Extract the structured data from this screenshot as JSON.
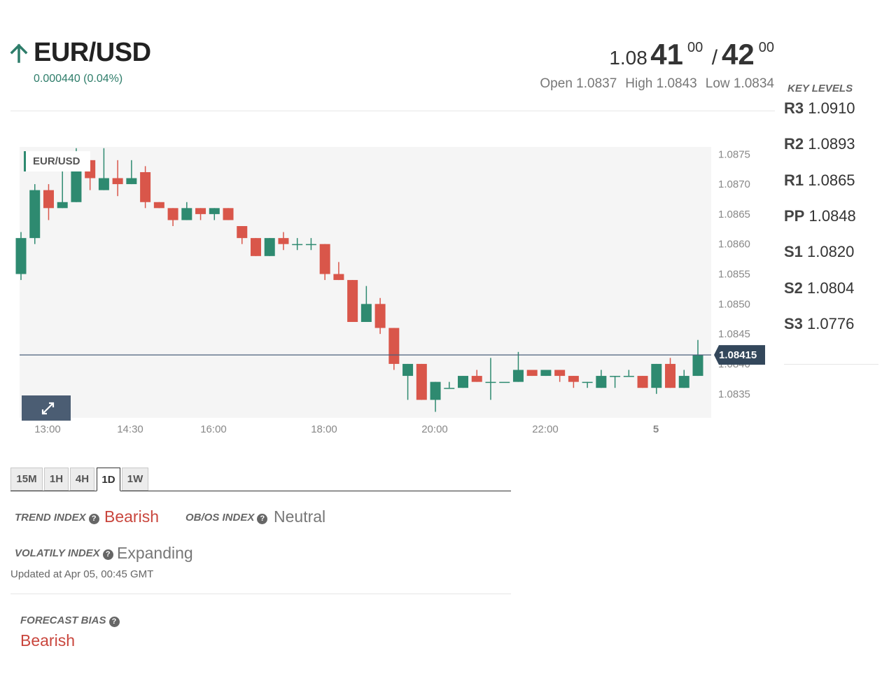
{
  "header": {
    "pair": "EUR/USD",
    "change": "0.000440 (0.04%)",
    "direction_icon": "up-arrow-icon",
    "bid_prefix": "1.08",
    "bid_big": "41",
    "bid_sup": "00",
    "separator": "/",
    "ask_big": "42",
    "ask_sup": "00",
    "open": "Open 1.0837",
    "high": "High 1.0843",
    "low": "Low 1.0834"
  },
  "key_levels": {
    "title": "KEY LEVELS",
    "items": [
      {
        "label": "R3",
        "value": "1.0910"
      },
      {
        "label": "R2",
        "value": "1.0893"
      },
      {
        "label": "R1",
        "value": "1.0865"
      },
      {
        "label": "PP",
        "value": "1.0848"
      },
      {
        "label": "S1",
        "value": "1.0820"
      },
      {
        "label": "S2",
        "value": "1.0804"
      },
      {
        "label": "S3",
        "value": "1.0776"
      }
    ]
  },
  "chart": {
    "legend": "EUR/USD",
    "current_price": "1.08415",
    "expand_icon": "expand-arrows-icon"
  },
  "chart_data": {
    "type": "candlestick",
    "title": "EUR/USD",
    "y_ticks": [
      "1.0835",
      "1.0840",
      "1.0845",
      "1.0850",
      "1.0855",
      "1.0860",
      "1.0865",
      "1.0870",
      "1.0875"
    ],
    "x_ticks": [
      "13:00",
      "14:30",
      "16:00",
      "18:00",
      "20:00",
      "22:00",
      "5"
    ],
    "ylim": [
      1.0831,
      1.08762
    ],
    "current_price": 1.08415,
    "grid": false,
    "candles": [
      {
        "o": 1.0855,
        "h": 1.0862,
        "l": 1.0854,
        "c": 1.0861
      },
      {
        "o": 1.0861,
        "h": 1.087,
        "l": 1.086,
        "c": 1.0869
      },
      {
        "o": 1.0869,
        "h": 1.087,
        "l": 1.0864,
        "c": 1.0866
      },
      {
        "o": 1.0866,
        "h": 1.0875,
        "l": 1.0866,
        "c": 1.0867
      },
      {
        "o": 1.0867,
        "h": 1.0876,
        "l": 1.0867,
        "c": 1.0874
      },
      {
        "o": 1.0874,
        "h": 1.0874,
        "l": 1.0869,
        "c": 1.0871
      },
      {
        "o": 1.0869,
        "h": 1.0876,
        "l": 1.0869,
        "c": 1.0871
      },
      {
        "o": 1.0871,
        "h": 1.0874,
        "l": 1.0868,
        "c": 1.087
      },
      {
        "o": 1.087,
        "h": 1.0874,
        "l": 1.087,
        "c": 1.0871
      },
      {
        "o": 1.0872,
        "h": 1.0873,
        "l": 1.0866,
        "c": 1.0867
      },
      {
        "o": 1.0867,
        "h": 1.0867,
        "l": 1.0866,
        "c": 1.0866
      },
      {
        "o": 1.0866,
        "h": 1.0866,
        "l": 1.0863,
        "c": 1.0864
      },
      {
        "o": 1.0864,
        "h": 1.0867,
        "l": 1.0864,
        "c": 1.0866
      },
      {
        "o": 1.0866,
        "h": 1.0866,
        "l": 1.0864,
        "c": 1.0865
      },
      {
        "o": 1.0865,
        "h": 1.0866,
        "l": 1.0864,
        "c": 1.0866
      },
      {
        "o": 1.0866,
        "h": 1.0866,
        "l": 1.0864,
        "c": 1.0864
      },
      {
        "o": 1.0863,
        "h": 1.0863,
        "l": 1.086,
        "c": 1.0861
      },
      {
        "o": 1.0861,
        "h": 1.0861,
        "l": 1.0858,
        "c": 1.0858
      },
      {
        "o": 1.0858,
        "h": 1.0861,
        "l": 1.0858,
        "c": 1.0861
      },
      {
        "o": 1.0861,
        "h": 1.0862,
        "l": 1.0859,
        "c": 1.086
      },
      {
        "o": 1.086,
        "h": 1.0861,
        "l": 1.0859,
        "c": 1.086
      },
      {
        "o": 1.086,
        "h": 1.0861,
        "l": 1.0859,
        "c": 1.086
      },
      {
        "o": 1.086,
        "h": 1.086,
        "l": 1.0854,
        "c": 1.0855
      },
      {
        "o": 1.0855,
        "h": 1.0857,
        "l": 1.0854,
        "c": 1.0854
      },
      {
        "o": 1.0854,
        "h": 1.0854,
        "l": 1.0847,
        "c": 1.0847
      },
      {
        "o": 1.0847,
        "h": 1.0853,
        "l": 1.0847,
        "c": 1.085
      },
      {
        "o": 1.085,
        "h": 1.0851,
        "l": 1.0845,
        "c": 1.0846
      },
      {
        "o": 1.0846,
        "h": 1.0846,
        "l": 1.0839,
        "c": 1.084
      },
      {
        "o": 1.0838,
        "h": 1.084,
        "l": 1.0834,
        "c": 1.084
      },
      {
        "o": 1.084,
        "h": 1.084,
        "l": 1.0834,
        "c": 1.0834
      },
      {
        "o": 1.0834,
        "h": 1.0837,
        "l": 1.0832,
        "c": 1.0837
      },
      {
        "o": 1.0836,
        "h": 1.0837,
        "l": 1.0836,
        "c": 1.0836
      },
      {
        "o": 1.0836,
        "h": 1.0838,
        "l": 1.0836,
        "c": 1.0838
      },
      {
        "o": 1.0838,
        "h": 1.0839,
        "l": 1.0837,
        "c": 1.0837
      },
      {
        "o": 1.0837,
        "h": 1.0841,
        "l": 1.0834,
        "c": 1.0837
      },
      {
        "o": 1.0837,
        "h": 1.0837,
        "l": 1.0837,
        "c": 1.0837
      },
      {
        "o": 1.0837,
        "h": 1.0842,
        "l": 1.0837,
        "c": 1.0839
      },
      {
        "o": 1.0839,
        "h": 1.0839,
        "l": 1.0838,
        "c": 1.0838
      },
      {
        "o": 1.0838,
        "h": 1.0839,
        "l": 1.0838,
        "c": 1.0839
      },
      {
        "o": 1.0839,
        "h": 1.0839,
        "l": 1.0837,
        "c": 1.0838
      },
      {
        "o": 1.0838,
        "h": 1.0838,
        "l": 1.0836,
        "c": 1.0837
      },
      {
        "o": 1.0837,
        "h": 1.0837,
        "l": 1.0836,
        "c": 1.0837
      },
      {
        "o": 1.0836,
        "h": 1.0839,
        "l": 1.0836,
        "c": 1.0838
      },
      {
        "o": 1.0838,
        "h": 1.0838,
        "l": 1.0836,
        "c": 1.0838
      },
      {
        "o": 1.0838,
        "h": 1.0839,
        "l": 1.0838,
        "c": 1.0838
      },
      {
        "o": 1.0838,
        "h": 1.0838,
        "l": 1.0836,
        "c": 1.0836
      },
      {
        "o": 1.0836,
        "h": 1.084,
        "l": 1.0835,
        "c": 1.084
      },
      {
        "o": 1.084,
        "h": 1.0841,
        "l": 1.0836,
        "c": 1.0836
      },
      {
        "o": 1.0836,
        "h": 1.0839,
        "l": 1.0836,
        "c": 1.0838
      },
      {
        "o": 1.0838,
        "h": 1.0844,
        "l": 1.0838,
        "c": 1.08415
      }
    ]
  },
  "timeframes": {
    "tabs": [
      "15M",
      "1H",
      "4H",
      "1D",
      "1W"
    ],
    "active": "1D"
  },
  "indices": {
    "trend_label": "TREND INDEX",
    "trend_value": "Bearish",
    "obos_label": "OB/OS INDEX",
    "obos_value": "Neutral",
    "volatility_label": "VOLATILY INDEX",
    "volatility_value": "Expanding",
    "help_icon": "question-circle-icon",
    "updated": "Updated at Apr 05, 00:45 GMT"
  },
  "forecast": {
    "label": "FORECAST BIAS",
    "value": "Bearish"
  },
  "colors": {
    "bull": "#2e8a70",
    "bear": "#d9564a",
    "bearish_text": "#c9463d",
    "accent_green": "#2e7d6a",
    "price_tag": "#33475b"
  }
}
